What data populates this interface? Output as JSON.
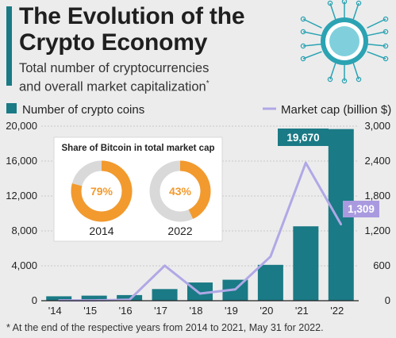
{
  "header": {
    "title_line1": "The Evolution of the",
    "title_line2": "Crypto Economy",
    "subtitle_line1": "Total number of cryptocurrencies",
    "subtitle_line2": "and overall market capitalization",
    "subtitle_mark": "*"
  },
  "footnote": "* At the end of the respective years from 2014 to 2021, May 31 for 2022.",
  "colors": {
    "bar": "#1a7a85",
    "line": "#b0a8e6",
    "donut_fill": "#f29a2e",
    "donut_rest": "#d9d9d9",
    "callout_line": "#a99ae0"
  },
  "chart_data": {
    "type": "bar",
    "categories": [
      "'14",
      "'15",
      "'16",
      "'17",
      "'18",
      "'19",
      "'20",
      "'21",
      "'22"
    ],
    "legend_position": "top",
    "grid": true,
    "series": [
      {
        "name": "Number of crypto coins",
        "type": "bar",
        "axis": "left",
        "values": [
          506,
          580,
          644,
          1335,
          2086,
          2403,
          4108,
          8525,
          19670
        ]
      },
      {
        "name": "Market cap (billion $)",
        "type": "line",
        "axis": "right",
        "values": [
          5,
          5,
          17,
          603,
          123,
          193,
          760,
          2370,
          1309
        ]
      }
    ],
    "y_left": {
      "min": 0,
      "max": 20000,
      "ticks": [
        "0",
        "4,000",
        "8,000",
        "12,000",
        "16,000",
        "20,000"
      ]
    },
    "y_right": {
      "min": 0,
      "max": 3000,
      "ticks": [
        "0",
        "600",
        "1,200",
        "1,800",
        "2,400",
        "3,000"
      ]
    },
    "callouts": [
      {
        "series": 0,
        "index": 8,
        "label": "19,670"
      },
      {
        "series": 1,
        "index": 8,
        "label": "1,309"
      }
    ],
    "inset": {
      "title": "Share of Bitcoin in total market cap",
      "type": "pie",
      "donuts": [
        {
          "year": "2014",
          "value": 79,
          "label": "79%"
        },
        {
          "year": "2022",
          "value": 43,
          "label": "43%"
        }
      ]
    }
  }
}
